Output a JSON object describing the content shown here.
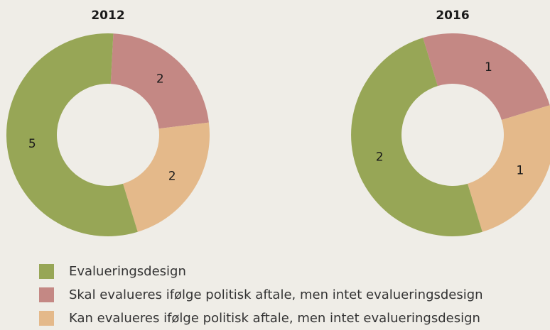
{
  "chart_data": [
    {
      "type": "pie",
      "donut": true,
      "title": "2012",
      "categories": [
        "Evalueringsdesign",
        "Skal evalueres ifølge politisk aftale, men intet evalueringsdesign",
        "Kan evalueres ifølge politisk aftale, men intet evalueringsdesign"
      ],
      "colors": [
        "#97a656",
        "#c48884",
        "#e4b98a"
      ],
      "values": [
        5,
        2,
        2
      ]
    },
    {
      "type": "pie",
      "donut": true,
      "title": "2016",
      "values": [
        2,
        1,
        1
      ]
    }
  ]
}
